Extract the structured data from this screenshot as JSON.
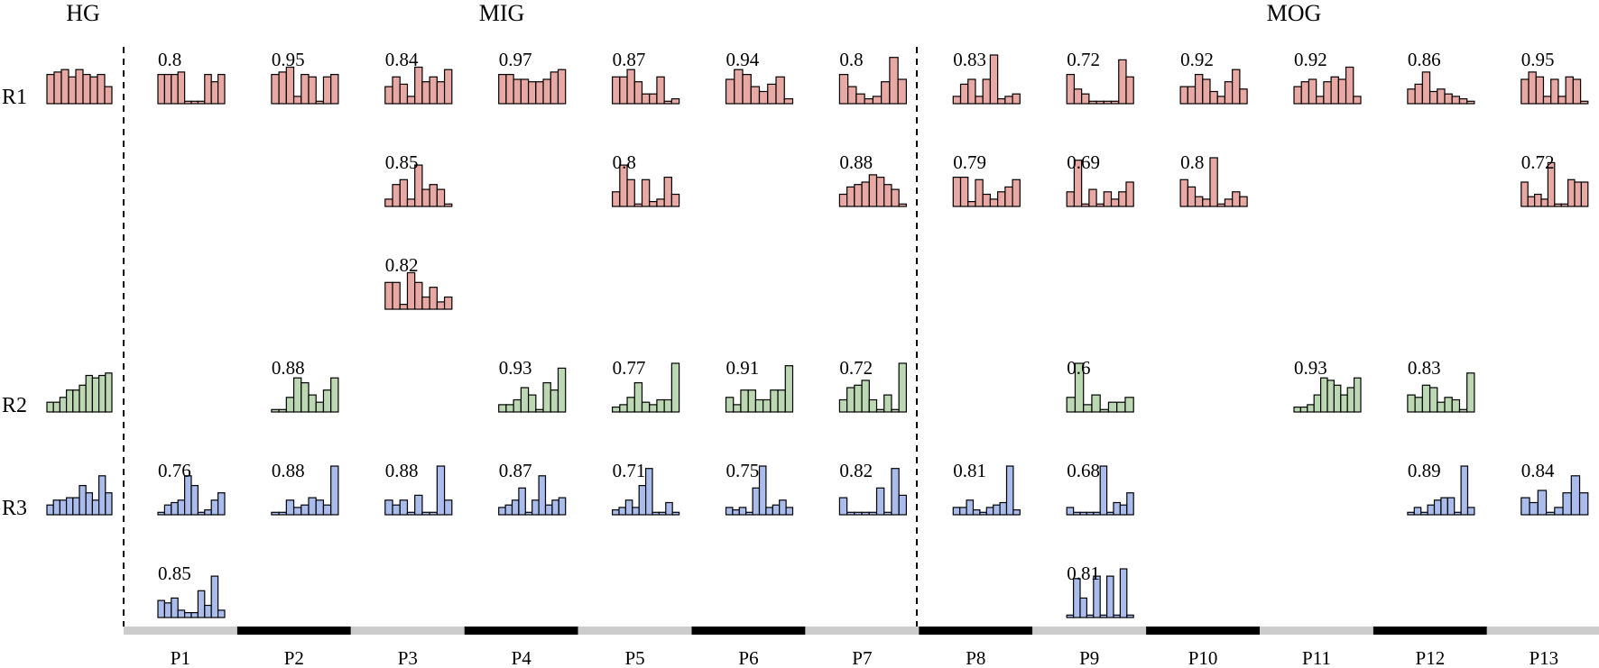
{
  "groups": [
    "HG",
    "MIG",
    "MOG"
  ],
  "rows": [
    "R1",
    "R2",
    "R3"
  ],
  "colors": {
    "R1": "#e8a8a3",
    "R2": "#bcd8b2",
    "R3": "#a9bcec",
    "bar_stroke": "#000000",
    "light_band": "#cccccc",
    "dark_band": "#000000"
  },
  "chart_data": {
    "type": "bar",
    "title": "",
    "description_free": true,
    "columns": [
      "P1",
      "P2",
      "P3",
      "P4",
      "P5",
      "P6",
      "P7",
      "P8",
      "P9",
      "P10",
      "P11",
      "P12",
      "P13"
    ],
    "column_groups": {
      "MIG": [
        "P1",
        "P2",
        "P3",
        "P4",
        "P5",
        "P6",
        "P7"
      ],
      "MOG": [
        "P8",
        "P9",
        "P10",
        "P11",
        "P12",
        "P13"
      ]
    },
    "ylim": [
      0,
      1
    ],
    "reference": [
      {
        "row": "R1",
        "values": [
          0.6,
          0.65,
          0.7,
          0.55,
          0.7,
          0.6,
          0.55,
          0.6,
          0.35
        ]
      },
      {
        "row": "R2",
        "values": [
          0.2,
          0.2,
          0.3,
          0.45,
          0.45,
          0.55,
          0.75,
          0.7,
          0.75,
          0.8
        ]
      },
      {
        "row": "R3",
        "values": [
          0.2,
          0.3,
          0.3,
          0.35,
          0.35,
          0.6,
          0.45,
          0.3,
          0.8,
          0.45
        ]
      }
    ],
    "cells": [
      {
        "row": "R1",
        "line": 0,
        "col": "P1",
        "score": "0.8",
        "values": [
          0.6,
          0.6,
          0.6,
          0.65,
          0.05,
          0.05,
          0.05,
          0.6,
          0.45,
          0.6
        ]
      },
      {
        "row": "R1",
        "line": 0,
        "col": "P2",
        "score": "0.95",
        "values": [
          0.6,
          0.65,
          0.75,
          0.15,
          0.6,
          0.55,
          0.05,
          0.55,
          0.6
        ]
      },
      {
        "row": "R1",
        "line": 0,
        "col": "P3",
        "score": "0.84",
        "values": [
          0.35,
          0.55,
          0.4,
          0.15,
          0.75,
          0.45,
          0.55,
          0.45,
          0.7
        ]
      },
      {
        "row": "R1",
        "line": 0,
        "col": "P4",
        "score": "0.97",
        "values": [
          0.6,
          0.6,
          0.5,
          0.5,
          0.45,
          0.45,
          0.5,
          0.65,
          0.7
        ]
      },
      {
        "row": "R1",
        "line": 0,
        "col": "P5",
        "score": "0.87",
        "values": [
          0.55,
          0.55,
          0.7,
          0.45,
          0.2,
          0.2,
          0.55,
          0.05,
          0.1
        ]
      },
      {
        "row": "R1",
        "line": 0,
        "col": "P6",
        "score": "0.94",
        "values": [
          0.5,
          0.7,
          0.6,
          0.35,
          0.25,
          0.4,
          0.55,
          0.1
        ]
      },
      {
        "row": "R1",
        "line": 0,
        "col": "P7",
        "score": "0.8",
        "values": [
          0.6,
          0.35,
          0.2,
          0.1,
          0.15,
          0.45,
          0.95,
          0.5
        ]
      },
      {
        "row": "R1",
        "line": 0,
        "col": "P8",
        "score": "0.83",
        "values": [
          0.15,
          0.4,
          0.5,
          0.15,
          0.5,
          1.0,
          0.1,
          0.15,
          0.2
        ]
      },
      {
        "row": "R1",
        "line": 0,
        "col": "P9",
        "score": "0.72",
        "values": [
          0.6,
          0.3,
          0.2,
          0.05,
          0.05,
          0.05,
          0.05,
          0.9,
          0.55
        ]
      },
      {
        "row": "R1",
        "line": 0,
        "col": "P10",
        "score": "0.92",
        "values": [
          0.35,
          0.35,
          0.6,
          0.5,
          0.25,
          0.15,
          0.45,
          0.7,
          0.3
        ]
      },
      {
        "row": "R1",
        "line": 0,
        "col": "P11",
        "score": "0.92",
        "values": [
          0.35,
          0.45,
          0.5,
          0.15,
          0.45,
          0.55,
          0.5,
          0.75,
          0.15
        ]
      },
      {
        "row": "R1",
        "line": 0,
        "col": "P12",
        "score": "0.86",
        "values": [
          0.3,
          0.4,
          0.65,
          0.25,
          0.3,
          0.2,
          0.15,
          0.1,
          0.05
        ]
      },
      {
        "row": "R1",
        "line": 0,
        "col": "P13",
        "score": "0.95",
        "values": [
          0.5,
          0.65,
          0.55,
          0.15,
          0.5,
          0.15,
          0.55,
          0.5,
          0.05
        ]
      },
      {
        "row": "R1",
        "line": 1,
        "col": "P3",
        "score": "0.85",
        "values": [
          0.15,
          0.45,
          0.55,
          0.15,
          0.85,
          0.35,
          0.45,
          0.35,
          0.05
        ]
      },
      {
        "row": "R1",
        "line": 1,
        "col": "P5",
        "score": "0.8",
        "values": [
          0.3,
          0.85,
          0.55,
          0.05,
          0.55,
          0.1,
          0.15,
          0.6,
          0.25
        ]
      },
      {
        "row": "R1",
        "line": 1,
        "col": "P7",
        "score": "0.88",
        "values": [
          0.25,
          0.4,
          0.45,
          0.5,
          0.65,
          0.6,
          0.45,
          0.35,
          0.05
        ]
      },
      {
        "row": "R1",
        "line": 1,
        "col": "P8",
        "score": "0.79",
        "values": [
          0.6,
          0.6,
          0.1,
          0.55,
          0.25,
          0.15,
          0.3,
          0.4,
          0.55
        ]
      },
      {
        "row": "R1",
        "line": 1,
        "col": "P9",
        "score": "0.69",
        "values": [
          0.3,
          0.95,
          0.05,
          0.35,
          0.05,
          0.3,
          0.15,
          0.3,
          0.5
        ]
      },
      {
        "row": "R1",
        "line": 1,
        "col": "P10",
        "score": "0.8",
        "values": [
          0.55,
          0.4,
          0.2,
          0.15,
          1.0,
          0.05,
          0.15,
          0.3,
          0.2
        ]
      },
      {
        "row": "R1",
        "line": 1,
        "col": "P13",
        "score": "0.72",
        "values": [
          0.5,
          0.2,
          0.25,
          0.15,
          0.9,
          0.05,
          0.05,
          0.55,
          0.5,
          0.5
        ]
      },
      {
        "row": "R1",
        "line": 2,
        "col": "P3",
        "score": "0.82",
        "values": [
          0.55,
          0.55,
          0.1,
          0.75,
          0.55,
          0.25,
          0.45,
          0.15,
          0.25
        ]
      },
      {
        "row": "R2",
        "line": 0,
        "col": "P2",
        "score": "0.88",
        "values": [
          0.05,
          0.05,
          0.3,
          0.7,
          0.6,
          0.35,
          0.2,
          0.45,
          0.7
        ]
      },
      {
        "row": "R2",
        "line": 0,
        "col": "P4",
        "score": "0.93",
        "values": [
          0.15,
          0.15,
          0.25,
          0.5,
          0.35,
          0.05,
          0.6,
          0.45,
          0.9
        ]
      },
      {
        "row": "R2",
        "line": 0,
        "col": "P5",
        "score": "0.77",
        "values": [
          0.1,
          0.15,
          0.3,
          0.6,
          0.2,
          0.15,
          0.25,
          0.25,
          1.0
        ]
      },
      {
        "row": "R2",
        "line": 0,
        "col": "P6",
        "score": "0.91",
        "values": [
          0.3,
          0.15,
          0.45,
          0.45,
          0.25,
          0.25,
          0.45,
          0.45,
          0.95
        ]
      },
      {
        "row": "R2",
        "line": 0,
        "col": "P7",
        "score": "0.72",
        "values": [
          0.25,
          0.5,
          0.55,
          0.65,
          0.25,
          0.05,
          0.35,
          0.05,
          1.0
        ]
      },
      {
        "row": "R2",
        "line": 0,
        "col": "P9",
        "score": "0.6",
        "values": [
          0.3,
          1.0,
          0.15,
          0.35,
          0.05,
          0.2,
          0.2,
          0.3
        ]
      },
      {
        "row": "R2",
        "line": 0,
        "col": "P11",
        "score": "0.93",
        "values": [
          0.1,
          0.1,
          0.15,
          0.35,
          0.7,
          0.65,
          0.55,
          0.35,
          0.5,
          0.7
        ]
      },
      {
        "row": "R2",
        "line": 0,
        "col": "P12",
        "score": "0.83",
        "values": [
          0.35,
          0.3,
          0.55,
          0.5,
          0.2,
          0.3,
          0.25,
          0.05,
          0.8
        ]
      },
      {
        "row": "R3",
        "line": 0,
        "col": "P1",
        "score": "0.76",
        "values": [
          0.05,
          0.2,
          0.25,
          0.3,
          0.8,
          0.6,
          0.05,
          0.1,
          0.3,
          0.45
        ]
      },
      {
        "row": "R3",
        "line": 0,
        "col": "P2",
        "score": "0.88",
        "values": [
          0.05,
          0.05,
          0.3,
          0.15,
          0.2,
          0.35,
          0.3,
          0.2,
          1.0
        ]
      },
      {
        "row": "R3",
        "line": 0,
        "col": "P3",
        "score": "0.88",
        "values": [
          0.3,
          0.2,
          0.3,
          0.05,
          0.4,
          0.05,
          0.05,
          1.0,
          0.3
        ]
      },
      {
        "row": "R3",
        "line": 0,
        "col": "P4",
        "score": "0.87",
        "values": [
          0.15,
          0.2,
          0.3,
          0.55,
          0.05,
          0.3,
          0.8,
          0.2,
          0.3,
          0.35
        ]
      },
      {
        "row": "R3",
        "line": 0,
        "col": "P5",
        "score": "0.71",
        "values": [
          0.1,
          0.15,
          0.3,
          0.15,
          0.6,
          0.95,
          0.05,
          0.05,
          0.25,
          0.05
        ]
      },
      {
        "row": "R3",
        "line": 0,
        "col": "P6",
        "score": "0.75",
        "values": [
          0.15,
          0.1,
          0.15,
          0.05,
          0.55,
          1.0,
          0.15,
          0.2,
          0.3,
          0.15
        ]
      },
      {
        "row": "R3",
        "line": 0,
        "col": "P7",
        "score": "0.82",
        "values": [
          0.35,
          0.05,
          0.05,
          0.05,
          0.05,
          0.55,
          0.05,
          0.95,
          0.4
        ]
      },
      {
        "row": "R3",
        "line": 0,
        "col": "P8",
        "score": "0.81",
        "values": [
          0.15,
          0.15,
          0.3,
          0.1,
          0.05,
          0.15,
          0.2,
          0.25,
          1.0,
          0.1
        ]
      },
      {
        "row": "R3",
        "line": 0,
        "col": "P9",
        "score": "0.68",
        "values": [
          0.15,
          0.05,
          0.05,
          0.05,
          0.05,
          1.0,
          0.05,
          0.25,
          0.2,
          0.45
        ]
      },
      {
        "row": "R3",
        "line": 0,
        "col": "P12",
        "score": "0.89",
        "values": [
          0.05,
          0.15,
          0.05,
          0.2,
          0.3,
          0.35,
          0.35,
          0.05,
          1.0,
          0.15
        ]
      },
      {
        "row": "R3",
        "line": 0,
        "col": "P13",
        "score": "0.84",
        "values": [
          0.35,
          0.25,
          0.5,
          0.05,
          0.15,
          0.45,
          0.8,
          0.45
        ]
      },
      {
        "row": "R3",
        "line": 1,
        "col": "P1",
        "score": "0.85",
        "values": [
          0.35,
          0.3,
          0.4,
          0.15,
          0.1,
          0.1,
          0.55,
          0.25,
          0.85,
          0.15
        ]
      },
      {
        "row": "R3",
        "line": 1,
        "col": "P9",
        "score": "0.81",
        "values": [
          0.05,
          0.8,
          0.4,
          0.05,
          0.85,
          0.05,
          0.85,
          0.05,
          1.0,
          0.05
        ]
      }
    ]
  }
}
